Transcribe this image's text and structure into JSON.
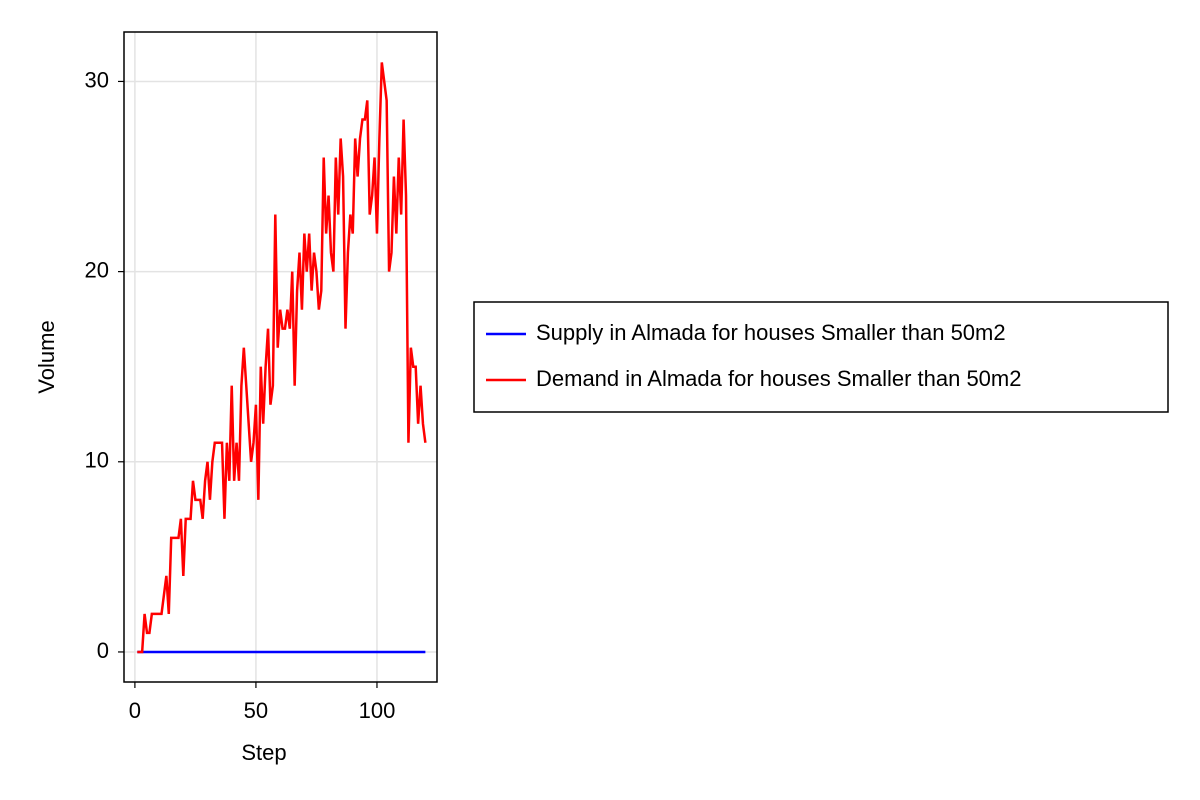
{
  "chart_data": {
    "type": "line",
    "xlabel": "Step",
    "ylabel": "Volume",
    "x": [
      1,
      2,
      3,
      4,
      5,
      6,
      7,
      8,
      9,
      10,
      11,
      12,
      13,
      14,
      15,
      16,
      17,
      18,
      19,
      20,
      21,
      22,
      23,
      24,
      25,
      26,
      27,
      28,
      29,
      30,
      31,
      32,
      33,
      34,
      35,
      36,
      37,
      38,
      39,
      40,
      41,
      42,
      43,
      44,
      45,
      46,
      47,
      48,
      49,
      50,
      51,
      52,
      53,
      54,
      55,
      56,
      57,
      58,
      59,
      60,
      61,
      62,
      63,
      64,
      65,
      66,
      67,
      68,
      69,
      70,
      71,
      72,
      73,
      74,
      75,
      76,
      77,
      78,
      79,
      80,
      81,
      82,
      83,
      84,
      85,
      86,
      87,
      88,
      89,
      90,
      91,
      92,
      93,
      94,
      95,
      96,
      97,
      98,
      99,
      100,
      101,
      102,
      103,
      104,
      105,
      106,
      107,
      108,
      109,
      110,
      111,
      112,
      113,
      114,
      115,
      116,
      117,
      118,
      119,
      120
    ],
    "series": [
      {
        "name": "Supply in Almada for houses Smaller than 50m2",
        "color": "#0000ff",
        "values": [
          0,
          0,
          0,
          0,
          0,
          0,
          0,
          0,
          0,
          0,
          0,
          0,
          0,
          0,
          0,
          0,
          0,
          0,
          0,
          0,
          0,
          0,
          0,
          0,
          0,
          0,
          0,
          0,
          0,
          0,
          0,
          0,
          0,
          0,
          0,
          0,
          0,
          0,
          0,
          0,
          0,
          0,
          0,
          0,
          0,
          0,
          0,
          0,
          0,
          0,
          0,
          0,
          0,
          0,
          0,
          0,
          0,
          0,
          0,
          0,
          0,
          0,
          0,
          0,
          0,
          0,
          0,
          0,
          0,
          0,
          0,
          0,
          0,
          0,
          0,
          0,
          0,
          0,
          0,
          0,
          0,
          0,
          0,
          0,
          0,
          0,
          0,
          0,
          0,
          0,
          0,
          0,
          0,
          0,
          0,
          0,
          0,
          0,
          0,
          0,
          0,
          0,
          0,
          0,
          0,
          0,
          0,
          0,
          0,
          0,
          0,
          0,
          0,
          0,
          0,
          0,
          0,
          0,
          0,
          0
        ]
      },
      {
        "name": "Demand in Almada for houses Smaller than 50m2",
        "color": "#ff0000",
        "values": [
          0,
          0,
          0,
          2,
          1,
          1,
          2,
          2,
          2,
          2,
          2,
          3,
          4,
          2,
          6,
          6,
          6,
          6,
          7,
          4,
          7,
          7,
          7,
          9,
          8,
          8,
          8,
          7,
          9,
          10,
          8,
          10,
          11,
          11,
          11,
          11,
          7,
          11,
          9,
          14,
          9,
          11,
          9,
          14,
          16,
          14,
          12,
          10,
          11,
          13,
          8,
          15,
          12,
          15,
          17,
          13,
          14,
          23,
          16,
          18,
          17,
          17,
          18,
          17,
          20,
          14,
          19,
          21,
          18,
          22,
          20,
          22,
          19,
          21,
          20,
          18,
          19,
          26,
          22,
          24,
          21,
          20,
          26,
          23,
          27,
          25,
          17,
          21,
          23,
          22,
          27,
          25,
          27,
          28,
          28,
          29,
          23,
          24,
          26,
          22,
          27,
          31,
          30,
          29,
          20,
          21,
          25,
          22,
          26,
          23,
          28,
          24,
          11,
          16,
          15,
          15,
          12,
          14,
          12,
          11
        ]
      }
    ],
    "xlim": [
      -4.5,
      124.8
    ],
    "ylim": [
      -1.58,
      32.6
    ],
    "xticks": [
      0,
      50,
      100
    ],
    "yticks": [
      0,
      10,
      20,
      30
    ],
    "grid": true,
    "legend": "right"
  }
}
